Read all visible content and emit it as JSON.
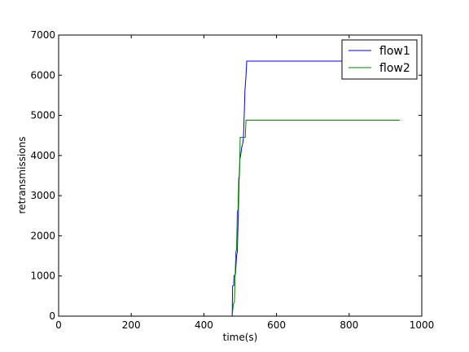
{
  "chart_data": {
    "type": "line",
    "title": "",
    "xlabel": "time(s)",
    "ylabel": "retransmissions",
    "xlim": [
      0,
      1000
    ],
    "ylim": [
      0,
      7000
    ],
    "x_ticks": [
      0,
      200,
      400,
      600,
      800,
      1000
    ],
    "y_ticks": [
      0,
      1000,
      2000,
      3000,
      4000,
      5000,
      6000,
      7000
    ],
    "grid": false,
    "legend_position": "top-right",
    "series": [
      {
        "name": "flow1",
        "color": "#0000ff",
        "points": [
          [
            0,
            0
          ],
          [
            478,
            0
          ],
          [
            479,
            750
          ],
          [
            482,
            760
          ],
          [
            483,
            1000
          ],
          [
            487,
            1050
          ],
          [
            490,
            1500
          ],
          [
            492,
            1600
          ],
          [
            495,
            2600
          ],
          [
            497,
            3400
          ],
          [
            499,
            3900
          ],
          [
            502,
            4050
          ],
          [
            504,
            4200
          ],
          [
            507,
            4300
          ],
          [
            509,
            4450
          ],
          [
            511,
            5000
          ],
          [
            513,
            5600
          ],
          [
            516,
            6000
          ],
          [
            518,
            6350
          ],
          [
            940,
            6350
          ]
        ]
      },
      {
        "name": "flow2",
        "color": "#008000",
        "points": [
          [
            0,
            0
          ],
          [
            478,
            0
          ],
          [
            481,
            300
          ],
          [
            484,
            350
          ],
          [
            486,
            1000
          ],
          [
            488,
            1600
          ],
          [
            490,
            1650
          ],
          [
            492,
            2600
          ],
          [
            494,
            2650
          ],
          [
            496,
            3450
          ],
          [
            498,
            3500
          ],
          [
            500,
            4450
          ],
          [
            514,
            4450
          ],
          [
            516,
            4880
          ],
          [
            940,
            4880
          ]
        ]
      }
    ]
  }
}
